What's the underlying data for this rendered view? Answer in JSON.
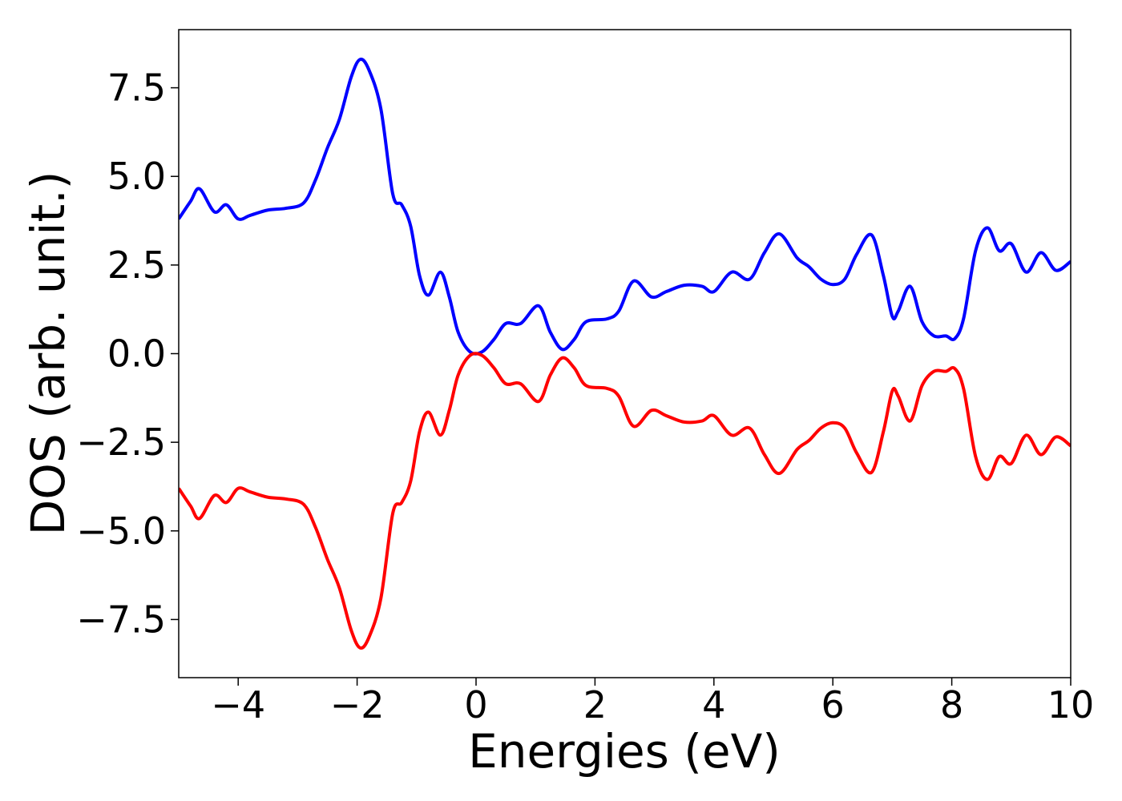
{
  "chart_data": {
    "type": "line",
    "xlabel": "Energies (eV)",
    "ylabel": "DOS (arb. unit.)",
    "xlim": [
      -5,
      10
    ],
    "ylim": [
      -9.14,
      9.14
    ],
    "xticks": [
      {
        "value": -4,
        "label": "−4"
      },
      {
        "value": -2,
        "label": "−2"
      },
      0,
      2,
      4,
      6,
      8,
      10
    ],
    "yticks": [
      {
        "value": -7.5,
        "label": "−7.5"
      },
      {
        "value": -5,
        "label": "−5.0"
      },
      {
        "value": -2.5,
        "label": "−2.5"
      },
      {
        "value": 0,
        "label": "0.0"
      },
      {
        "value": 2.5,
        "label": "2.5"
      },
      {
        "value": 5,
        "label": "5.0"
      },
      7.5
    ],
    "x": [
      -5,
      -4.8,
      -4.65,
      -4.4,
      -4.2,
      -4,
      -3.8,
      -3.5,
      -3.2,
      -2.9,
      -2.7,
      -2.5,
      -2.3,
      -2.1,
      -1.95,
      -1.8,
      -1.6,
      -1.4,
      -1.25,
      -1.1,
      -0.95,
      -0.8,
      -0.6,
      -0.45,
      -0.3,
      -0.1,
      0.1,
      0.3,
      0.5,
      0.75,
      1.05,
      1.25,
      1.45,
      1.65,
      1.85,
      2.2,
      2.4,
      2.65,
      2.95,
      3.2,
      3.5,
      3.8,
      4,
      4.3,
      4.6,
      4.85,
      5.1,
      5.4,
      5.6,
      5.8,
      6,
      6.2,
      6.4,
      6.65,
      6.85,
      7,
      7.1,
      7.3,
      7.5,
      7.7,
      7.9,
      8.05,
      8.2,
      8.4,
      8.6,
      8.8,
      9,
      9.25,
      9.5,
      9.75,
      10
    ],
    "series": [
      {
        "color": "#0000ff",
        "values": [
          3.8,
          4.3,
          4.65,
          4.0,
          4.2,
          3.8,
          3.9,
          4.05,
          4.1,
          4.25,
          4.9,
          5.8,
          6.6,
          7.8,
          8.3,
          8.0,
          6.9,
          4.5,
          4.2,
          3.6,
          2.2,
          1.65,
          2.3,
          1.6,
          0.6,
          0.05,
          0.05,
          0.4,
          0.85,
          0.85,
          1.35,
          0.6,
          0.12,
          0.4,
          0.9,
          0.98,
          1.2,
          2.05,
          1.6,
          1.75,
          1.93,
          1.9,
          1.75,
          2.3,
          2.1,
          2.85,
          3.38,
          2.7,
          2.45,
          2.1,
          1.95,
          2.1,
          2.8,
          3.35,
          2.2,
          1.05,
          1.2,
          1.9,
          0.9,
          0.5,
          0.5,
          0.42,
          1.0,
          2.9,
          3.55,
          2.9,
          3.1,
          2.3,
          2.85,
          2.35,
          2.6
        ]
      },
      {
        "color": "#ff0000",
        "values": [
          -3.8,
          -4.3,
          -4.65,
          -4.0,
          -4.2,
          -3.8,
          -3.9,
          -4.05,
          -4.1,
          -4.25,
          -4.9,
          -5.8,
          -6.6,
          -7.8,
          -8.3,
          -8.0,
          -6.9,
          -4.5,
          -4.2,
          -3.6,
          -2.2,
          -1.65,
          -2.3,
          -1.6,
          -0.6,
          -0.05,
          -0.05,
          -0.4,
          -0.85,
          -0.85,
          -1.35,
          -0.6,
          -0.12,
          -0.4,
          -0.9,
          -0.98,
          -1.2,
          -2.05,
          -1.6,
          -1.75,
          -1.93,
          -1.9,
          -1.75,
          -2.3,
          -2.1,
          -2.85,
          -3.38,
          -2.7,
          -2.45,
          -2.1,
          -1.95,
          -2.1,
          -2.8,
          -3.35,
          -2.2,
          -1.05,
          -1.2,
          -1.9,
          -0.9,
          -0.5,
          -0.5,
          -0.42,
          -1.0,
          -2.9,
          -3.55,
          -2.9,
          -3.1,
          -2.3,
          -2.85,
          -2.35,
          -2.6
        ]
      }
    ]
  }
}
